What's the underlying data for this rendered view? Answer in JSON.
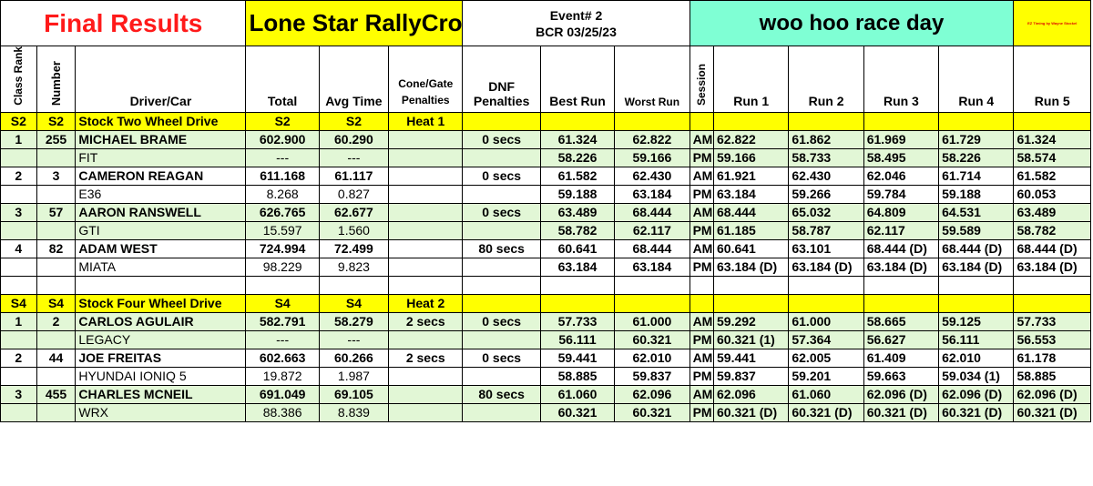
{
  "banner": {
    "title": "Final Results",
    "series": "Lone Star RallyCross",
    "event_line1": "Event# 2",
    "event_line2": "BCR 03/25/23",
    "race_name": "woo hoo race day",
    "timing_credit": "EZ Timing by Wayne Stockel"
  },
  "headers": {
    "class_rank": "Class Rank",
    "number": "Number",
    "driver_car": "Driver/Car",
    "total": "Total",
    "avg_time": "Avg Time",
    "cone_gate": "Cone/Gate Penalties",
    "dnf_l1": "DNF",
    "dnf_l2": "Penalties",
    "best_run": "Best Run",
    "worst_run": "Worst Run",
    "session": "Session",
    "runs": [
      "Run 1",
      "Run 2",
      "Run 3",
      "Run 4",
      "Run 5"
    ]
  },
  "classes": [
    {
      "code": "S2",
      "name": "Stock Two Wheel Drive",
      "heat": "Heat 1",
      "drivers": [
        {
          "rank": "1",
          "number": "255",
          "name": "MICHAEL BRAME",
          "car": "FIT",
          "total": "602.900",
          "avg": "60.290",
          "total2": "---",
          "avg2": "---",
          "cone": "",
          "dnf": "0 secs",
          "best_am": "61.324",
          "worst_am": "62.822",
          "best_pm": "58.226",
          "worst_pm": "59.166",
          "am_runs": [
            "62.822",
            "61.862",
            "61.969",
            "61.729",
            "61.324"
          ],
          "pm_runs": [
            "59.166",
            "58.733",
            "58.495",
            "58.226",
            "58.574"
          ]
        },
        {
          "rank": "2",
          "number": "3",
          "name": "CAMERON REAGAN",
          "car": "E36",
          "total": "611.168",
          "avg": "61.117",
          "total2": "8.268",
          "avg2": "0.827",
          "cone": "",
          "dnf": "0 secs",
          "best_am": "61.582",
          "worst_am": "62.430",
          "best_pm": "59.188",
          "worst_pm": "63.184",
          "am_runs": [
            "61.921",
            "62.430",
            "62.046",
            "61.714",
            "61.582"
          ],
          "pm_runs": [
            "63.184",
            "59.266",
            "59.784",
            "59.188",
            "60.053"
          ]
        },
        {
          "rank": "3",
          "number": "57",
          "name": "AARON RANSWELL",
          "car": "GTI",
          "total": "626.765",
          "avg": "62.677",
          "total2": "15.597",
          "avg2": "1.560",
          "cone": "",
          "dnf": "0 secs",
          "best_am": "63.489",
          "worst_am": "68.444",
          "best_pm": "58.782",
          "worst_pm": "62.117",
          "am_runs": [
            "68.444",
            "65.032",
            "64.809",
            "64.531",
            "63.489"
          ],
          "pm_runs": [
            "61.185",
            "58.787",
            "62.117",
            "59.589",
            "58.782"
          ]
        },
        {
          "rank": "4",
          "number": "82",
          "name": "ADAM WEST",
          "car": "MIATA",
          "total": "724.994",
          "avg": "72.499",
          "total2": "98.229",
          "avg2": "9.823",
          "cone": "",
          "dnf": "80 secs",
          "best_am": "60.641",
          "worst_am": "68.444",
          "best_pm": "63.184",
          "worst_pm": "63.184",
          "am_runs": [
            "60.641",
            "63.101",
            "68.444 (D)",
            "68.444 (D)",
            "68.444 (D)"
          ],
          "pm_runs": [
            "63.184 (D)",
            "63.184 (D)",
            "63.184 (D)",
            "63.184 (D)",
            "63.184 (D)"
          ]
        }
      ]
    },
    {
      "code": "S4",
      "name": "Stock Four Wheel Drive",
      "heat": "Heat 2",
      "drivers": [
        {
          "rank": "1",
          "number": "2",
          "name": "CARLOS AGULAIR",
          "car": "LEGACY",
          "total": "582.791",
          "avg": "58.279",
          "total2": "---",
          "avg2": "---",
          "cone": "2 secs",
          "dnf": "0 secs",
          "best_am": "57.733",
          "worst_am": "61.000",
          "best_pm": "56.111",
          "worst_pm": "60.321",
          "am_runs": [
            "59.292",
            "61.000",
            "58.665",
            "59.125",
            "57.733"
          ],
          "pm_runs": [
            "60.321 (1)",
            "57.364",
            "56.627",
            "56.111",
            "56.553"
          ]
        },
        {
          "rank": "2",
          "number": "44",
          "name": "JOE FREITAS",
          "car": "HYUNDAI IONIQ 5",
          "total": "602.663",
          "avg": "60.266",
          "total2": "19.872",
          "avg2": "1.987",
          "cone": "2 secs",
          "dnf": "0 secs",
          "best_am": "59.441",
          "worst_am": "62.010",
          "best_pm": "58.885",
          "worst_pm": "59.837",
          "am_runs": [
            "59.441",
            "62.005",
            "61.409",
            "62.010",
            "61.178"
          ],
          "pm_runs": [
            "59.837",
            "59.201",
            "59.663",
            "59.034 (1)",
            "58.885"
          ]
        },
        {
          "rank": "3",
          "number": "455",
          "name": "CHARLES MCNEIL",
          "car": "WRX",
          "total": "691.049",
          "avg": "69.105",
          "total2": "88.386",
          "avg2": "8.839",
          "cone": "",
          "dnf": "80 secs",
          "best_am": "61.060",
          "worst_am": "62.096",
          "best_pm": "60.321",
          "worst_pm": "60.321",
          "am_runs": [
            "62.096",
            "61.060",
            "62.096 (D)",
            "62.096 (D)",
            "62.096 (D)"
          ],
          "pm_runs": [
            "60.321 (D)",
            "60.321 (D)",
            "60.321 (D)",
            "60.321 (D)",
            "60.321 (D)"
          ]
        }
      ]
    }
  ],
  "sessions": {
    "am": "AM",
    "pm": "PM"
  }
}
